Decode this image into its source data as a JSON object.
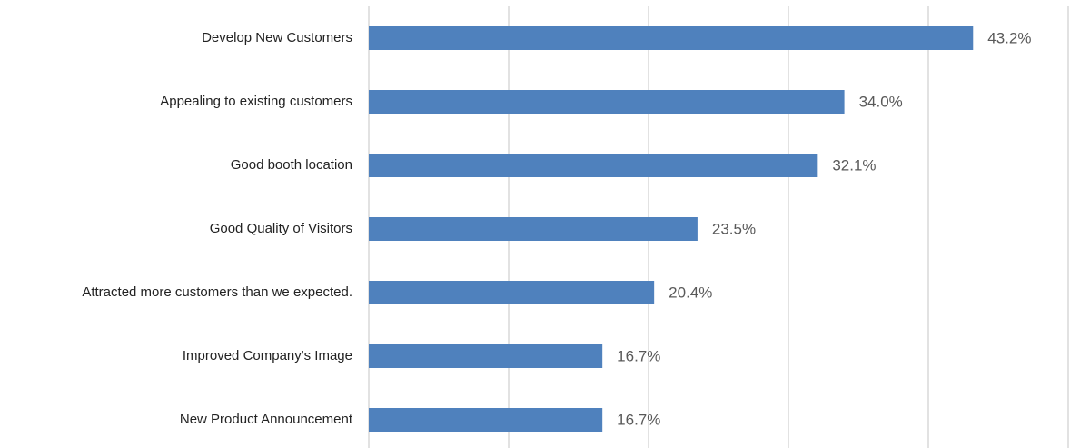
{
  "chart_data": {
    "type": "bar",
    "orientation": "horizontal",
    "categories": [
      "Develop New Customers",
      "Appealing to existing customers",
      "Good booth location",
      "Good Quality of Visitors",
      "Attracted more customers than we expected.",
      "Improved Company's Image",
      "New Product Announcement"
    ],
    "values": [
      43.2,
      34.0,
      32.1,
      23.5,
      20.4,
      16.7,
      16.7
    ],
    "value_labels": [
      "43.2%",
      "34.0%",
      "32.1%",
      "23.5%",
      "20.4%",
      "16.7%",
      "16.7%"
    ],
    "color": "#4f81bd",
    "xlim": [
      0,
      50
    ],
    "xticks": [
      0,
      10,
      20,
      30,
      40,
      50
    ],
    "grid": true
  }
}
